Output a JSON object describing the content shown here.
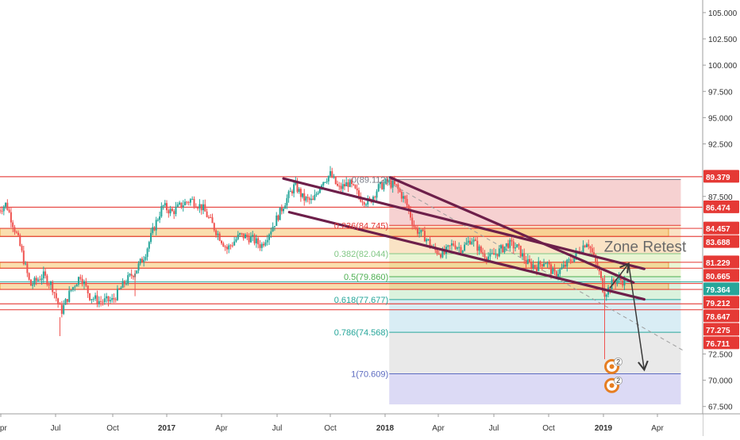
{
  "chart_data": {
    "type": "candlestick",
    "instrument": "",
    "x_axis": {
      "tick_labels": [
        "Apr",
        "Jul",
        "Oct",
        "2017",
        "Apr",
        "Jul",
        "Oct",
        "2018",
        "Apr",
        "Jul",
        "Oct",
        "2019",
        "Apr"
      ],
      "bold_labels": [
        "2017",
        "2018",
        "2019"
      ],
      "tick_dates": [
        "2016-04-01",
        "2016-07-01",
        "2016-10-01",
        "2017-01-01",
        "2017-04-01",
        "2017-07-01",
        "2017-10-01",
        "2018-01-01",
        "2018-04-01",
        "2018-07-01",
        "2018-10-01",
        "2019-01-01",
        "2019-04-01"
      ],
      "range": [
        "2016-03-28",
        "2019-05-17"
      ]
    },
    "y_axis": {
      "tick_labels": [
        "105.000",
        "102.500",
        "100.000",
        "97.500",
        "95.000",
        "92.500",
        "87.500",
        "72.500",
        "70.000",
        "67.500"
      ],
      "ylim": [
        66.8,
        106.2
      ],
      "side": "right"
    },
    "grid": false,
    "price_path": [
      [
        "2016-03-28",
        86.2
      ],
      [
        "2016-04-10",
        86.8
      ],
      [
        "2016-05-01",
        83.2
      ],
      [
        "2016-05-20",
        79.0
      ],
      [
        "2016-06-10",
        80.0
      ],
      [
        "2016-06-25",
        79.0
      ],
      [
        "2016-07-10",
        76.5
      ],
      [
        "2016-07-25",
        78.5
      ],
      [
        "2016-08-10",
        80.0
      ],
      [
        "2016-08-25",
        78.0
      ],
      [
        "2016-09-10",
        77.5
      ],
      [
        "2016-10-01",
        77.6
      ],
      [
        "2016-10-20",
        79.2
      ],
      [
        "2016-11-10",
        80.5
      ],
      [
        "2016-11-25",
        82.0
      ],
      [
        "2016-12-10",
        84.5
      ],
      [
        "2016-12-25",
        86.6
      ],
      [
        "2017-01-10",
        86.0
      ],
      [
        "2017-01-25",
        86.7
      ],
      [
        "2017-02-10",
        87.2
      ],
      [
        "2017-03-01",
        86.4
      ],
      [
        "2017-03-20",
        84.5
      ],
      [
        "2017-04-10",
        82.5
      ],
      [
        "2017-05-01",
        83.8
      ],
      [
        "2017-05-20",
        83.5
      ],
      [
        "2017-06-05",
        82.8
      ],
      [
        "2017-06-25",
        84.8
      ],
      [
        "2017-07-15",
        87.0
      ],
      [
        "2017-08-01",
        88.6
      ],
      [
        "2017-08-15",
        87.3
      ],
      [
        "2017-09-01",
        87.0
      ],
      [
        "2017-09-15",
        88.8
      ],
      [
        "2017-10-01",
        89.6
      ],
      [
        "2017-10-15",
        88.2
      ],
      [
        "2017-11-01",
        88.8
      ],
      [
        "2017-11-20",
        87.4
      ],
      [
        "2017-12-05",
        86.9
      ],
      [
        "2017-12-20",
        88.3
      ],
      [
        "2018-01-05",
        88.9
      ],
      [
        "2018-01-20",
        88.4
      ],
      [
        "2018-02-05",
        87.0
      ],
      [
        "2018-02-20",
        84.5
      ],
      [
        "2018-03-10",
        83.6
      ],
      [
        "2018-03-25",
        82.4
      ],
      [
        "2018-04-10",
        82.0
      ],
      [
        "2018-04-25",
        83.0
      ],
      [
        "2018-05-10",
        82.5
      ],
      [
        "2018-05-25",
        83.5
      ],
      [
        "2018-06-10",
        82.2
      ],
      [
        "2018-06-25",
        81.7
      ],
      [
        "2018-07-10",
        82.3
      ],
      [
        "2018-07-25",
        83.0
      ],
      [
        "2018-08-10",
        82.6
      ],
      [
        "2018-08-25",
        81.2
      ],
      [
        "2018-09-10",
        80.8
      ],
      [
        "2018-09-25",
        81.4
      ],
      [
        "2018-10-10",
        80.0
      ],
      [
        "2018-10-25",
        80.7
      ],
      [
        "2018-11-10",
        81.6
      ],
      [
        "2018-11-25",
        82.6
      ],
      [
        "2018-12-05",
        83.3
      ],
      [
        "2018-12-15",
        81.8
      ],
      [
        "2018-12-25",
        80.2
      ],
      [
        "2019-01-02",
        78.3
      ],
      [
        "2019-01-08",
        78.6
      ],
      [
        "2019-01-15",
        79.2
      ],
      [
        "2019-01-25",
        79.6
      ],
      [
        "2019-02-05",
        79.4
      ]
    ],
    "horizontal_levels": [
      {
        "label": "89.379",
        "price": 89.379,
        "color": "#e53935"
      },
      {
        "label": "86.474",
        "price": 86.474,
        "color": "#e53935"
      },
      {
        "label": "84.457",
        "price": 84.457,
        "color": "#e53935"
      },
      {
        "label": "83.688",
        "price": 83.688,
        "color": "#e53935"
      },
      {
        "label": "81.229",
        "price": 81.229,
        "color": "#e53935"
      },
      {
        "label": "80.665",
        "price": 80.665,
        "color": "#e53935"
      },
      {
        "label": "79.364",
        "price": 79.364,
        "color": "#26a69a"
      },
      {
        "label": "79.212",
        "price": 79.212,
        "color": "#e53935"
      },
      {
        "label": "78.647",
        "price": 78.647,
        "color": "#e53935"
      },
      {
        "label": "77.275",
        "price": 77.275,
        "color": "#e53935"
      },
      {
        "label": "76.711",
        "price": 76.711,
        "color": "#e53935"
      }
    ],
    "zones": [
      {
        "from": 83.688,
        "to": 84.457,
        "color": "#f5c36b"
      },
      {
        "from": 80.665,
        "to": 81.229,
        "color": "#f5c36b"
      },
      {
        "from": 78.647,
        "to": 79.212,
        "color": "#f5c36b"
      }
    ],
    "fibonacci": {
      "start": "2018-01-08",
      "end": "2019-05-10",
      "levels": [
        {
          "label": "0(89.112)",
          "ratio": 0,
          "price": 89.112,
          "color": "#787b86",
          "fill": "#f4c6c6"
        },
        {
          "label": "0.236(84.745)",
          "ratio": 0.236,
          "price": 84.745,
          "color": "#e53935",
          "fill": "#f9dcb6"
        },
        {
          "label": "0.382(82.044)",
          "ratio": 0.382,
          "price": 82.044,
          "color": "#81c784",
          "fill": "#e4f2c8"
        },
        {
          "label": "0.5(79.860)",
          "ratio": 0.5,
          "price": 79.86,
          "color": "#4caf50",
          "fill": "#d2efd4"
        },
        {
          "label": "0.618(77.677)",
          "ratio": 0.618,
          "price": 77.677,
          "color": "#26a69a",
          "fill": "#cfe9f3"
        },
        {
          "label": "0.786(74.568)",
          "ratio": 0.786,
          "price": 74.568,
          "color": "#26a69a",
          "fill": "#e3e3e3"
        },
        {
          "label": "1(70.609)",
          "ratio": 1,
          "price": 70.609,
          "color": "#5c6bc0",
          "fill": "#d3d1f3"
        }
      ],
      "extension_price": 67.7
    },
    "channel_lines": [
      {
        "from": [
          "2017-07-12",
          89.2
        ],
        "to": [
          "2019-03-10",
          80.6
        ]
      },
      {
        "from": [
          "2018-01-10",
          89.3
        ],
        "to": [
          "2019-02-20",
          79.3
        ]
      },
      {
        "from": [
          "2017-07-22",
          86.0
        ],
        "to": [
          "2019-03-10",
          77.7
        ]
      }
    ],
    "dashed_trend": {
      "from": [
        "2018-01-05",
        88.9
      ],
      "to": [
        "2019-05-15",
        72.8
      ]
    },
    "projection_arrows": [
      {
        "from": [
          "2019-01-12",
          78.8
        ],
        "to": [
          "2019-02-12",
          81.1
        ]
      },
      {
        "from": [
          "2019-02-12",
          81.1
        ],
        "to": [
          "2019-03-10",
          71.0
        ]
      }
    ],
    "annotations": [
      {
        "text": "Zone Retest",
        "date": "2019-01-02",
        "price": 82.25
      }
    ],
    "event_markers": [
      {
        "date": "2019-01-15",
        "price": 71.3,
        "badge": "2"
      },
      {
        "date": "2019-01-15",
        "price": 69.5,
        "badge": "2"
      }
    ]
  }
}
